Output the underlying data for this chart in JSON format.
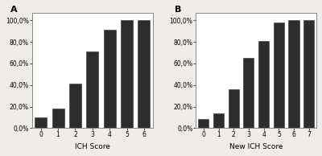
{
  "chart_A": {
    "label": "A",
    "categories": [
      0,
      1,
      2,
      3,
      4,
      5,
      6
    ],
    "values": [
      10.0,
      18.0,
      41.0,
      71.0,
      91.0,
      100.0,
      100.0
    ],
    "xlabel": "ICH Score"
  },
  "chart_B": {
    "label": "B",
    "categories": [
      0,
      1,
      2,
      3,
      4,
      5,
      6,
      7
    ],
    "values": [
      8.5,
      14.0,
      36.0,
      65.0,
      81.0,
      98.0,
      100.0,
      100.0
    ],
    "xlabel": "New ICH Score"
  },
  "yticks": [
    0.0,
    20.0,
    40.0,
    60.0,
    80.0,
    100.0
  ],
  "ytick_labels": [
    "0,0%",
    "20,0%",
    "40,0%",
    "60,0%",
    "80,0%",
    "100,0%"
  ],
  "ylim": [
    0,
    107
  ],
  "background_color": "#f0ece8",
  "plot_bg_color": "#ffffff",
  "bar_color": "#2d2d2d",
  "bar_edgecolor": "#2d2d2d",
  "spine_color": "#888888",
  "tick_fontsize": 5.5,
  "label_fontsize": 6.5,
  "panel_label_fontsize": 8.0,
  "bar_width": 0.7
}
